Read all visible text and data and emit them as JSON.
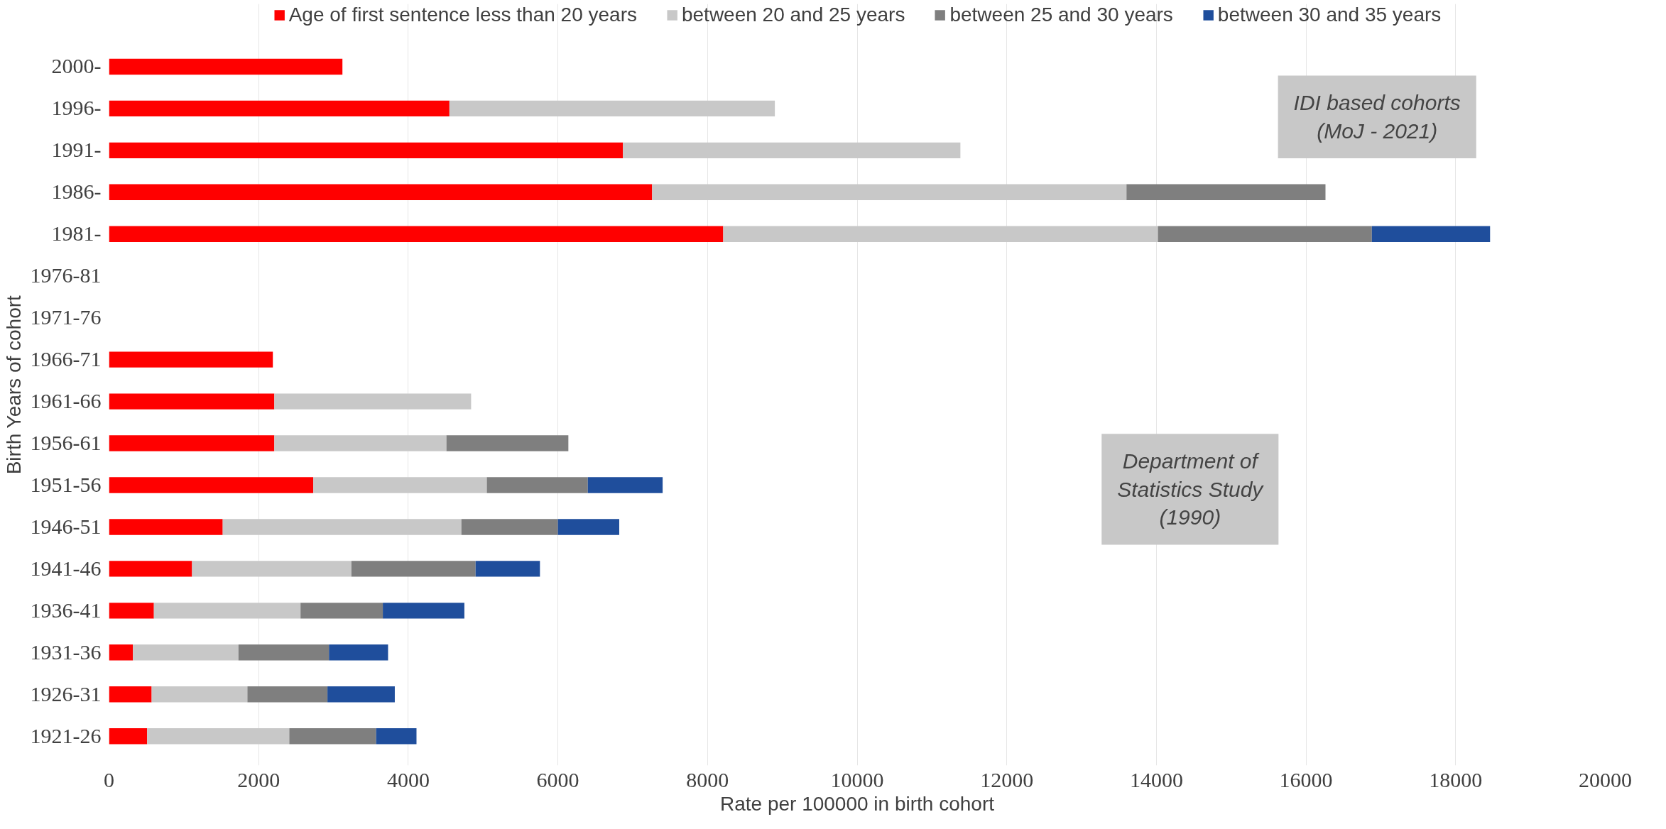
{
  "chart_data": {
    "type": "bar",
    "orientation": "horizontal",
    "stacked": true,
    "xlabel": "Rate per 100000 in birth cohort",
    "ylabel": "Birth Years of cohort",
    "categories": [
      "2000-",
      "1996-",
      "1991-",
      "1986-",
      "1981-",
      "1976-81",
      "1971-76",
      "1966-71",
      "1961-66",
      "1956-61",
      "1951-56",
      "1946-51",
      "1941-46",
      "1936-41",
      "1931-36",
      "1926-31",
      "1921-26"
    ],
    "series": [
      {
        "name": "Age of first sentence less than 20 years",
        "color": "#ff0000",
        "values": [
          3120,
          4550,
          6870,
          7260,
          8210,
          null,
          null,
          2190,
          2210,
          2210,
          2730,
          1520,
          1110,
          600,
          320,
          570,
          510
        ]
      },
      {
        "name": "between 20 and 25 years",
        "color": "#c8c8c8",
        "values": [
          null,
          4350,
          4510,
          6340,
          5810,
          null,
          null,
          null,
          2630,
          2300,
          2320,
          3190,
          2130,
          1960,
          1410,
          1280,
          1900
        ]
      },
      {
        "name": "between 25 and 30 years",
        "color": "#7f7f7f",
        "values": [
          null,
          null,
          null,
          2660,
          2860,
          null,
          null,
          null,
          null,
          1630,
          1350,
          1290,
          1660,
          1100,
          1210,
          1070,
          1160
        ]
      },
      {
        "name": "between 30 and 35 years",
        "color": "#1f4e9c",
        "values": [
          null,
          null,
          null,
          null,
          1580,
          null,
          null,
          null,
          null,
          null,
          1000,
          820,
          860,
          1090,
          790,
          900,
          540
        ]
      }
    ],
    "xlim": [
      0,
      20000
    ],
    "xticks": [
      0,
      2000,
      4000,
      6000,
      8000,
      10000,
      12000,
      14000,
      16000,
      18000,
      20000
    ],
    "grid": "x",
    "legend": "top",
    "annotations": [
      "IDI based cohorts (MoJ - 2021)",
      "Department of Statistics Study (1990)"
    ]
  }
}
